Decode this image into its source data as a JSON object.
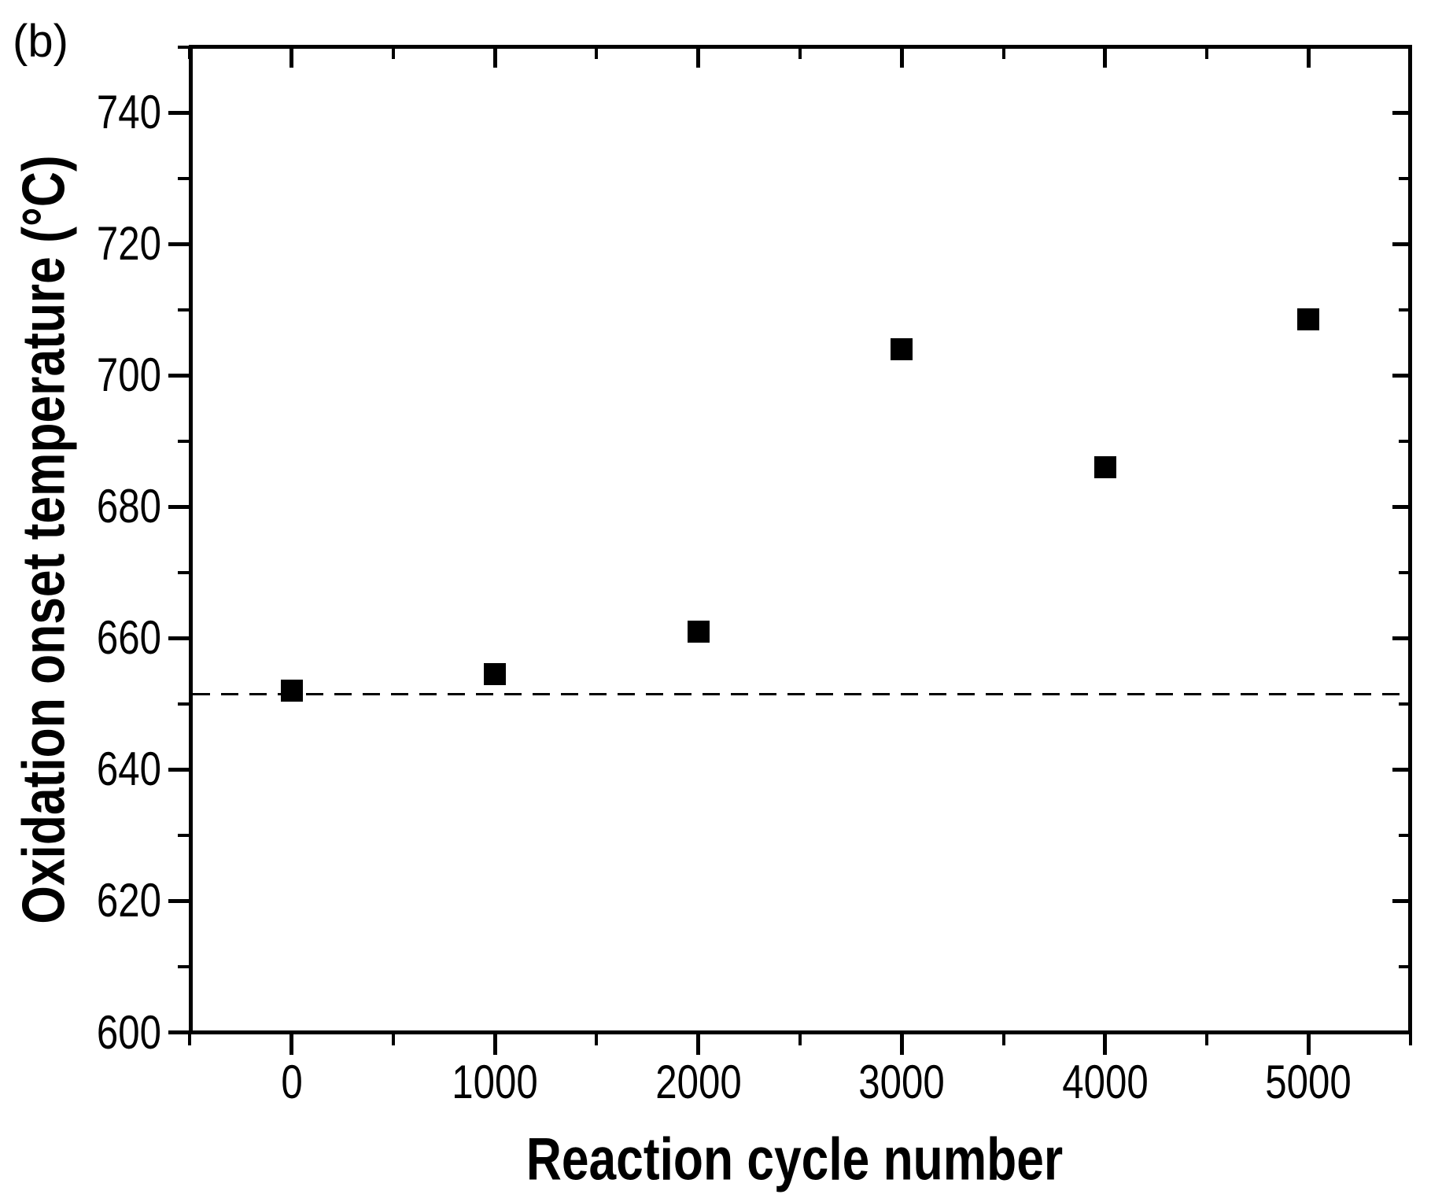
{
  "figure_label": "(b)",
  "colors": {
    "foreground": "#000000",
    "background": "#ffffff"
  },
  "chart_data": {
    "type": "scatter",
    "title": "",
    "xlabel": "Reaction cycle number",
    "ylabel": "Oxidation onset temperature (°C)",
    "x": [
      0,
      1000,
      2000,
      3000,
      4000,
      5000
    ],
    "y": [
      652,
      654.5,
      661,
      704,
      686,
      708.5
    ],
    "marker": "filled-square",
    "marker_color": "#000000",
    "xlim": [
      -500,
      5500
    ],
    "ylim": [
      600,
      750
    ],
    "x_major_ticks": [
      0,
      1000,
      2000,
      3000,
      4000,
      5000
    ],
    "x_minor_ticks": [
      -500,
      500,
      1500,
      2500,
      3500,
      4500,
      5500
    ],
    "y_major_ticks": [
      600,
      620,
      640,
      660,
      680,
      700,
      720,
      740
    ],
    "y_minor_ticks": [
      610,
      630,
      650,
      670,
      690,
      710,
      730,
      750
    ],
    "reference_line": {
      "y": 651.5,
      "style": "dashed",
      "color": "#000000"
    },
    "grid": false,
    "legend": false
  }
}
